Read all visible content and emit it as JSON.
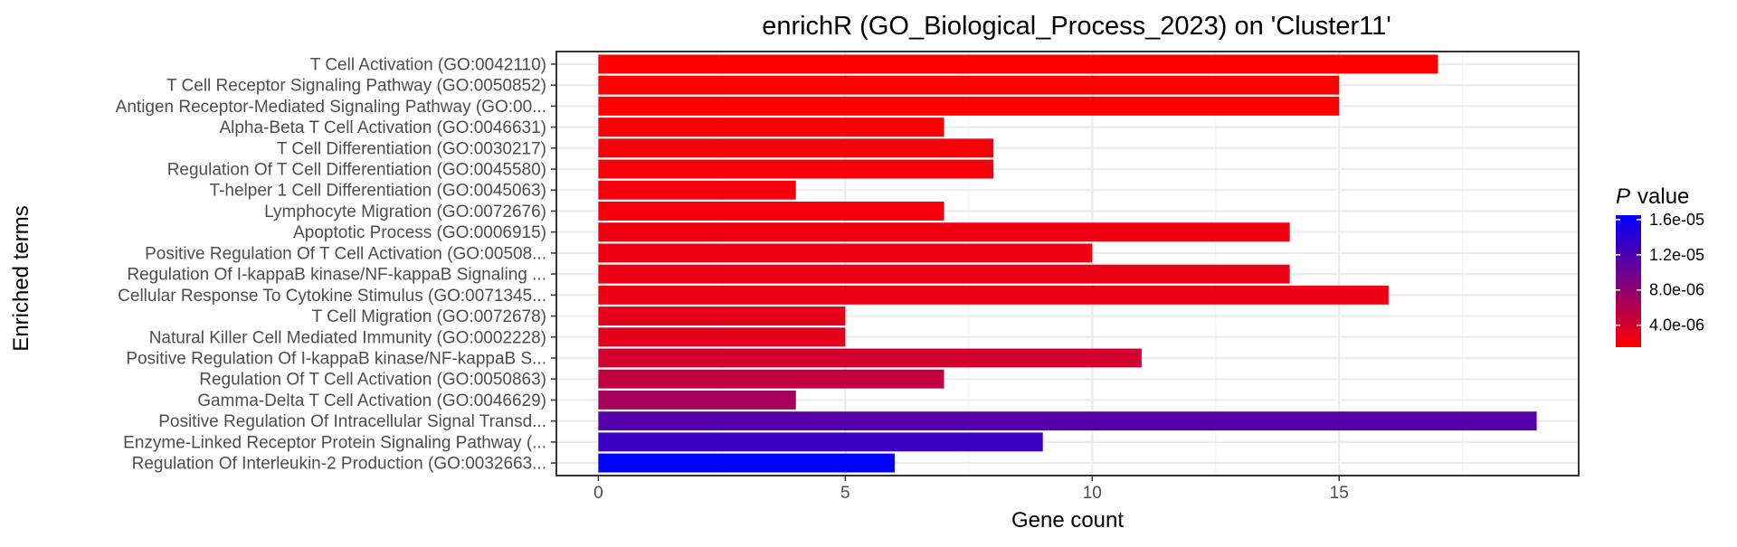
{
  "chart_data": {
    "type": "bar",
    "orientation": "horizontal",
    "title": "enrichR (GO_Biological_Process_2023) on 'Cluster11'",
    "xlabel": "Gene count",
    "ylabel": "Enriched terms",
    "xlim": [
      -0.85,
      19.85
    ],
    "x_ticks": [
      0,
      5,
      10,
      15
    ],
    "x_tick_labels": [
      "0",
      "5",
      "10",
      "15"
    ],
    "grid": true,
    "legend": {
      "title_italic": "P",
      "title_rest": "value",
      "placement": "right",
      "range": [
        1.5e-06,
        1.65e-05
      ],
      "ticks": [
        1.6e-05,
        1.2e-05,
        8e-06,
        4e-06
      ],
      "tick_labels": [
        "1.6e-05",
        "1.2e-05",
        "8.0e-06",
        "4.0e-06"
      ],
      "color_low": "#FF0000",
      "color_high": "#0000FF"
    },
    "categories": [
      "T Cell Activation (GO:0042110)",
      "T Cell Receptor Signaling Pathway (GO:0050852)",
      "Antigen Receptor-Mediated Signaling Pathway (GO:00...",
      "Alpha-Beta T Cell Activation (GO:0046631)",
      "T Cell Differentiation (GO:0030217)",
      "Regulation Of T Cell Differentiation (GO:0045580)",
      "T-helper 1 Cell Differentiation (GO:0045063)",
      "Lymphocyte Migration (GO:0072676)",
      "Apoptotic Process (GO:0006915)",
      "Positive Regulation Of T Cell Activation (GO:00508...",
      "Regulation Of I-kappaB kinase/NF-kappaB Signaling ...",
      "Cellular Response To Cytokine Stimulus (GO:0071345...",
      "T Cell Migration (GO:0072678)",
      "Natural Killer Cell Mediated Immunity (GO:0002228)",
      "Positive Regulation Of I-kappaB kinase/NF-kappaB S...",
      "Regulation Of T Cell Activation (GO:0050863)",
      "Gamma-Delta T Cell Activation (GO:0046629)",
      "Positive Regulation Of Intracellular Signal Transd...",
      "Enzyme-Linked Receptor Protein Signaling Pathway (...",
      "Regulation Of Interleukin-2 Production (GO:0032663..."
    ],
    "values": [
      17,
      15,
      15,
      7,
      8,
      8,
      4,
      7,
      14,
      10,
      14,
      16,
      5,
      5,
      11,
      7,
      4,
      19,
      9,
      6
    ],
    "p_values": [
      1.5e-06,
      1.6e-06,
      1.6e-06,
      1.8e-06,
      1.9e-06,
      2e-06,
      2.1e-06,
      2.2e-06,
      2.4e-06,
      2.5e-06,
      2.6e-06,
      2.7e-06,
      3e-06,
      3.2e-06,
      4.2e-06,
      5.2e-06,
      6.8e-06,
      1.15e-05,
      1.3e-05,
      1.65e-05
    ]
  }
}
